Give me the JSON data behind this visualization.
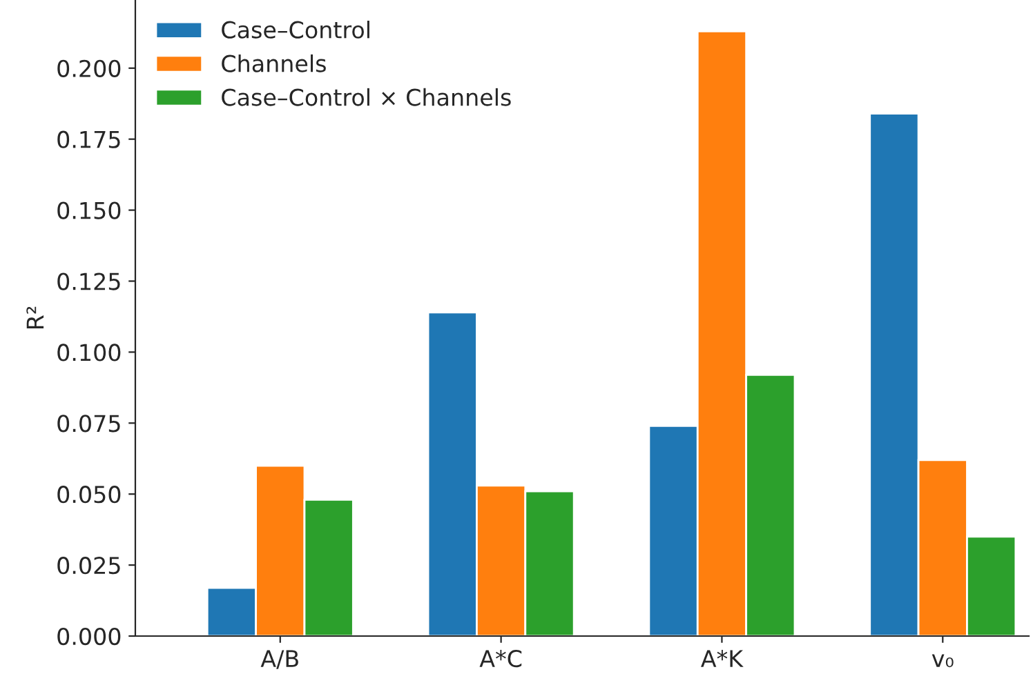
{
  "chart_data": {
    "type": "bar",
    "ylabel": "R²",
    "categories": [
      "A/B",
      "A*C",
      "A*K",
      "v₀"
    ],
    "series": [
      {
        "name": "Case–Control",
        "color": "#1f77b4",
        "values": [
          0.017,
          0.114,
          0.074,
          0.184
        ]
      },
      {
        "name": "Channels",
        "color": "#ff7f0e",
        "values": [
          0.06,
          0.053,
          0.213,
          0.062
        ]
      },
      {
        "name": "Case–Control × Channels",
        "color": "#2ca02c",
        "values": [
          0.048,
          0.051,
          0.092,
          0.035
        ]
      }
    ],
    "ylim": [
      0,
      0.224
    ],
    "yticks": [
      {
        "value": 0,
        "label": "0.000"
      },
      {
        "value": 0.025,
        "label": "0.025"
      },
      {
        "value": 0.05,
        "label": "0.050"
      },
      {
        "value": 0.075,
        "label": "0.075"
      },
      {
        "value": 0.1,
        "label": "0.100"
      },
      {
        "value": 0.125,
        "label": "0.125"
      },
      {
        "value": 0.15,
        "label": "0.150"
      },
      {
        "value": 0.175,
        "label": "0.175"
      },
      {
        "value": 0.2,
        "label": "0.200"
      }
    ],
    "legend": "top left",
    "grid": false
  }
}
